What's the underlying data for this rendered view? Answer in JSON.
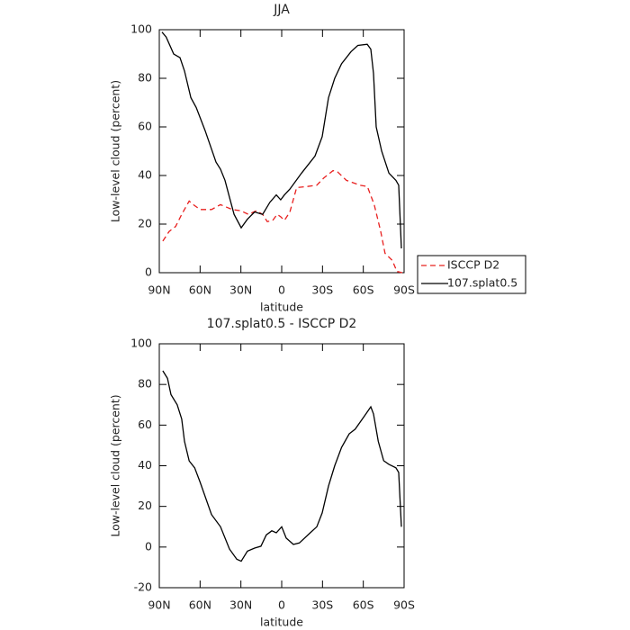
{
  "chart_data": [
    {
      "type": "line",
      "title": "JJA",
      "xlabel": "latitude",
      "ylabel": "Low-level cloud (percent)",
      "xlim": [
        90,
        -90
      ],
      "xticks": [
        {
          "value": 90,
          "label": "90N"
        },
        {
          "value": 60,
          "label": "60N"
        },
        {
          "value": 30,
          "label": "30N"
        },
        0,
        {
          "value": -30,
          "label": "30S"
        },
        {
          "value": -60,
          "label": "60S"
        },
        {
          "value": -90,
          "label": "90S"
        }
      ],
      "ylim": [
        0,
        100
      ],
      "yticks": [
        0,
        20,
        40,
        60,
        80,
        100
      ],
      "legend": "right",
      "series": [
        {
          "name": "ISCCP D2",
          "color": "#e8201f",
          "style": "dashed",
          "x": [
            87.4,
            82.7,
            78,
            73.5,
            68,
            65,
            60,
            51.6,
            45,
            36.4,
            30,
            24.5,
            18.6,
            14,
            10.6,
            6.6,
            3.3,
            0.7,
            -2,
            -6,
            -11,
            -19,
            -25.8,
            -31,
            -37.7,
            -41,
            -47.6,
            -57.6,
            -63,
            -68,
            -72.8,
            -76,
            -81.4,
            -84.7,
            -88.7
          ],
          "values": [
            13,
            17,
            19,
            24,
            29.5,
            28,
            26,
            26,
            28,
            26,
            25.5,
            24,
            25.5,
            24,
            21,
            21.5,
            24,
            23,
            21.5,
            25,
            35,
            35.5,
            36,
            39,
            42,
            41.5,
            38,
            36,
            35.5,
            28,
            17,
            8,
            5,
            0.5,
            0
          ]
        },
        {
          "name": "107.splat0.5",
          "color": "#000000",
          "style": "solid",
          "x": [
            88,
            85,
            79.4,
            74.8,
            71.5,
            66.8,
            62.9,
            56.3,
            48.3,
            45,
            41.7,
            38.4,
            35,
            29.8,
            25.2,
            19.9,
            14,
            8.7,
            4,
            0.7,
            -2,
            -6,
            -14.6,
            -24.5,
            -29.8,
            -34.4,
            -39,
            -44,
            -51,
            -56,
            -62.9,
            -65.5,
            -67.5,
            -69.5,
            -73.5,
            -78.8,
            -84,
            -86,
            -88
          ],
          "values": [
            99,
            97,
            90,
            88.5,
            83,
            72,
            68,
            58.5,
            45.5,
            42.6,
            38,
            31,
            24,
            18.5,
            22,
            25,
            24,
            29,
            32,
            30,
            32,
            34.4,
            41,
            48,
            56,
            72,
            80,
            86,
            91,
            93.5,
            94,
            92,
            82,
            60,
            50,
            41,
            38,
            36,
            10
          ]
        }
      ]
    },
    {
      "type": "line",
      "title": "107.splat0.5 - ISCCP D2",
      "xlabel": "latitude",
      "ylabel": "Low-level cloud (percent)",
      "xlim": [
        90,
        -90
      ],
      "xticks": [
        {
          "value": 90,
          "label": "90N"
        },
        {
          "value": 60,
          "label": "60N"
        },
        {
          "value": 30,
          "label": "30N"
        },
        0,
        {
          "value": -30,
          "label": "30S"
        },
        {
          "value": -60,
          "label": "60S"
        },
        {
          "value": -90,
          "label": "90S"
        }
      ],
      "ylim": [
        -20,
        100
      ],
      "yticks": [
        -20,
        0,
        20,
        40,
        60,
        80,
        100
      ],
      "series": [
        {
          "color": "#000000",
          "style": "solid",
          "x": [
            87.4,
            84,
            81.4,
            76.8,
            73.5,
            71.5,
            68,
            64,
            60,
            51.6,
            45,
            38.4,
            33,
            29.8,
            25.2,
            19.9,
            15.3,
            11.3,
            7.3,
            4,
            0,
            -3.3,
            -8.6,
            -13,
            -21,
            -25.8,
            -29.8,
            -34.4,
            -39,
            -44,
            -49.6,
            -54,
            -61,
            -65.5,
            -67.5,
            -71,
            -75,
            -78.8,
            -84,
            -86,
            -88
          ],
          "values": [
            86.7,
            83,
            75,
            70,
            63,
            52,
            42.4,
            39,
            32,
            16,
            10,
            -1,
            -6,
            -7,
            -2,
            -0.5,
            0.4,
            6,
            8,
            7,
            10,
            4.4,
            1.3,
            2,
            7,
            10,
            16.8,
            30,
            40,
            49,
            55.7,
            58,
            64.6,
            69,
            65.5,
            52,
            42.5,
            40.7,
            39,
            36.7,
            10
          ]
        }
      ]
    }
  ]
}
